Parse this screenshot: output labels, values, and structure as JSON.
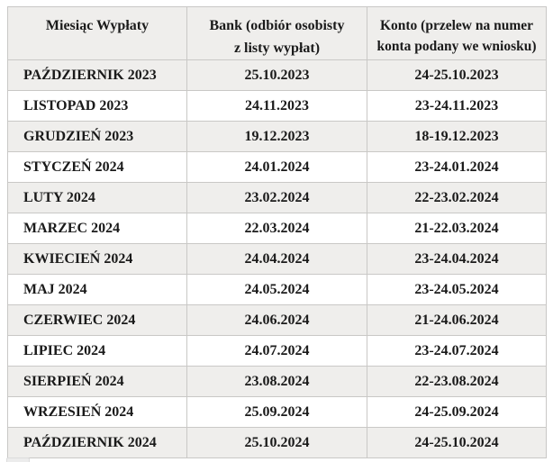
{
  "table": {
    "headers": [
      {
        "label": "Miesiąc Wypłaty",
        "lines": [
          "Miesiąc Wypłaty"
        ]
      },
      {
        "label": "Bank (odbiór osobisty z listy wypłat)",
        "lines": [
          "Bank (odbiór osobisty",
          "z listy wypłat)"
        ]
      },
      {
        "label": "Konto (przelew na numer konta podany we wniosku)",
        "lines": [
          "Konto (przelew na numer",
          "konta podany we wniosku)"
        ]
      }
    ],
    "rows": [
      {
        "month": "PAŹDZIERNIK 2023",
        "bank": "25.10.2023",
        "konto": "24-25.10.2023"
      },
      {
        "month": "LISTOPAD 2023",
        "bank": "24.11.2023",
        "konto": "23-24.11.2023"
      },
      {
        "month": "GRUDZIEŃ 2023",
        "bank": "19.12.2023",
        "konto": "18-19.12.2023"
      },
      {
        "month": "STYCZEŃ 2024",
        "bank": "24.01.2024",
        "konto": "23-24.01.2024"
      },
      {
        "month": "LUTY 2024",
        "bank": "23.02.2024",
        "konto": "22-23.02.2024"
      },
      {
        "month": "MARZEC 2024",
        "bank": "22.03.2024",
        "konto": "21-22.03.2024"
      },
      {
        "month": "KWIECIEŃ 2024",
        "bank": "24.04.2024",
        "konto": "23-24.04.2024"
      },
      {
        "month": "MAJ 2024",
        "bank": "24.05.2024",
        "konto": "23-24.05.2024"
      },
      {
        "month": "CZERWIEC 2024",
        "bank": "24.06.2024",
        "konto": "21-24.06.2024"
      },
      {
        "month": "LIPIEC 2024",
        "bank": "24.07.2024",
        "konto": "23-24.07.2024"
      },
      {
        "month": "SIERPIEŃ 2024",
        "bank": "23.08.2024",
        "konto": "22-23.08.2024"
      },
      {
        "month": "WRZESIEŃ 2024",
        "bank": "25.09.2024",
        "konto": "24-25.09.2024"
      },
      {
        "month": "PAŹDZIERNIK 2024",
        "bank": "25.10.2024",
        "konto": "24-25.10.2024"
      }
    ],
    "colors": {
      "header_bg": "#efeeec",
      "stripe_bg": "#efeeec",
      "row_bg": "#ffffff",
      "border": "#c9c8c6",
      "text": "#1a1a1a",
      "page_bg": "#ffffff"
    }
  }
}
